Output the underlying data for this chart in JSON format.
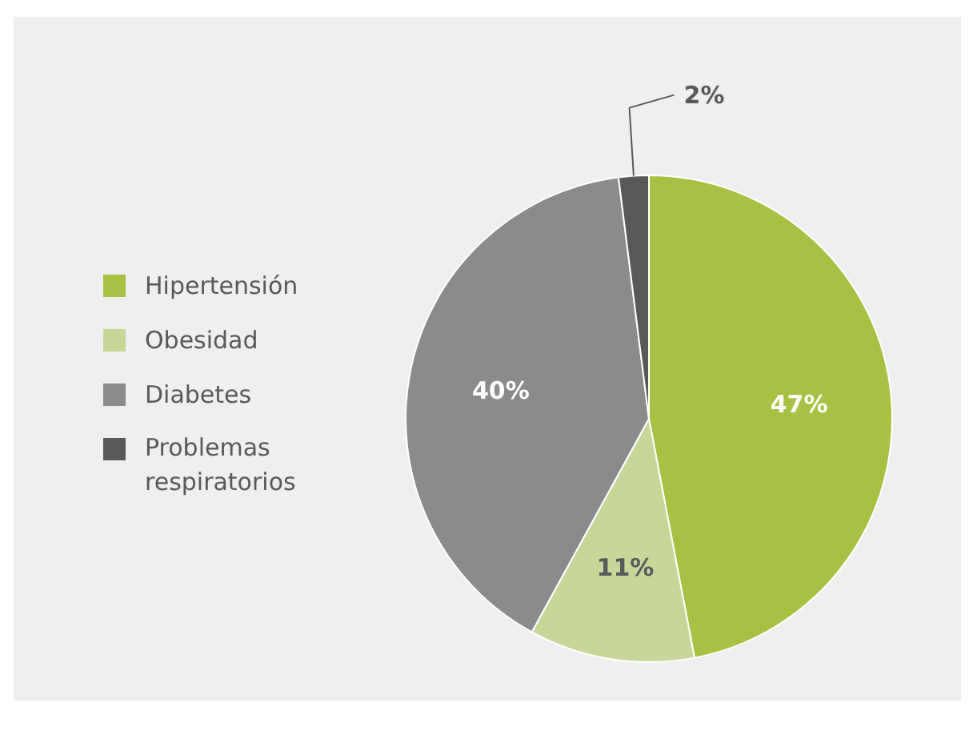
{
  "chart_data": {
    "type": "pie",
    "categories": [
      "Hipertensión",
      "Obesidad",
      "Diabetes",
      "Problemas respiratorios"
    ],
    "values": [
      47,
      11,
      40,
      2
    ],
    "colors": [
      "#a8c142",
      "#c9d69a",
      "#8a8b8d",
      "#58595b"
    ],
    "value_labels": [
      "47%",
      "11%",
      "40%",
      "2%"
    ],
    "legend": "left"
  }
}
